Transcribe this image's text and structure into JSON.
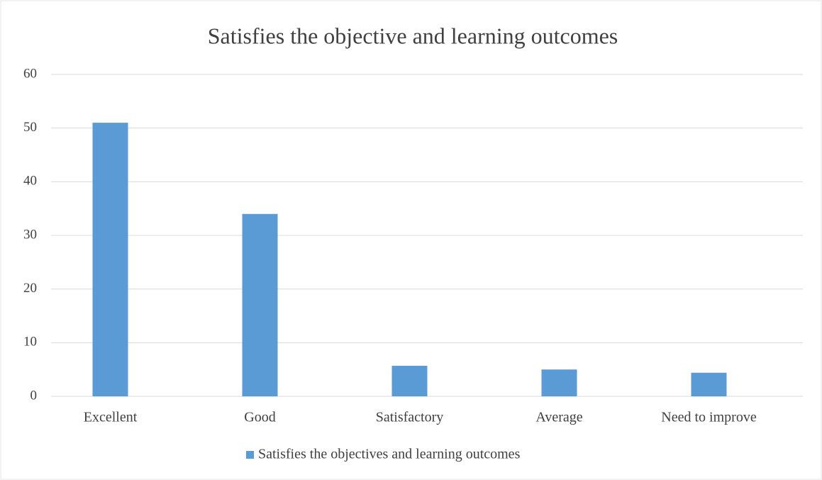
{
  "chart_data": {
    "type": "bar",
    "title": "Satisfies the objective and learning outcomes",
    "categories": [
      "Excellent",
      "Good",
      "Satisfactory",
      "Average",
      "Need to improve"
    ],
    "series": [
      {
        "name": "Satisfies the objectives and learning outcomes",
        "color": "#5b9bd5",
        "values": [
          51,
          34,
          5.7,
          5,
          4.4
        ]
      }
    ],
    "ylim": [
      0,
      60
    ],
    "yticks": [
      0,
      10,
      20,
      30,
      40,
      50,
      60
    ],
    "grid": true,
    "legend": "bottom"
  }
}
